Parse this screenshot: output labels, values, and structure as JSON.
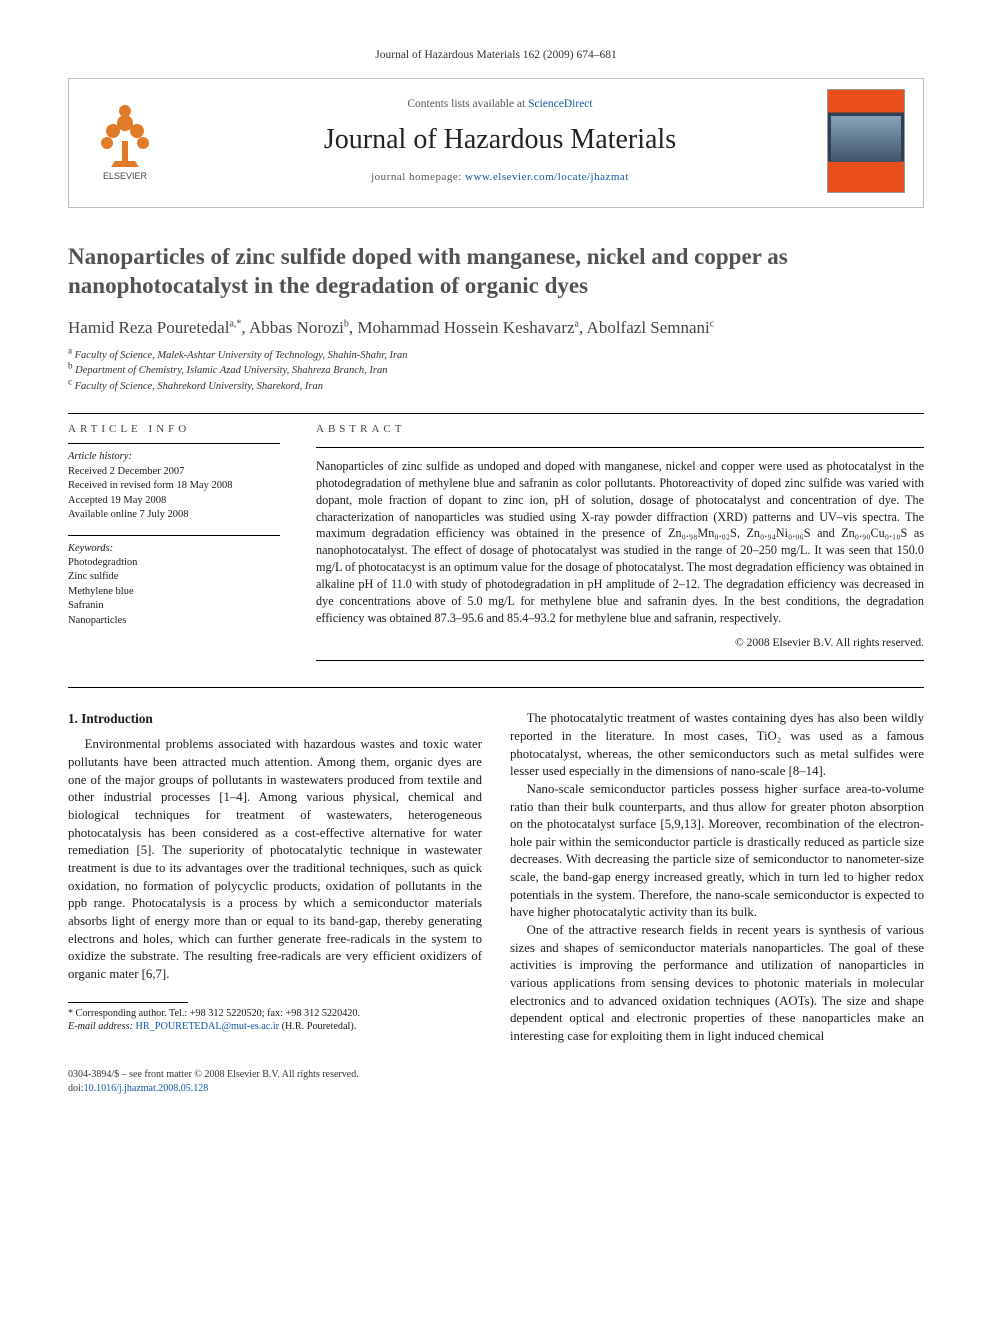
{
  "topline": "Journal of Hazardous Materials 162 (2009) 674–681",
  "pubbox": {
    "avail_prefix": "Contents lists available at ",
    "avail_link": "ScienceDirect",
    "journal": "Journal of Hazardous Materials",
    "homepage_prefix": "journal homepage: ",
    "homepage_link": "www.elsevier.com/locate/jhazmat",
    "elsevier_tree_color": "#e07b2a",
    "elsevier_text": "ELSEVIER"
  },
  "title": "Nanoparticles of zinc sulfide doped with manganese, nickel and copper as nanophotocatalyst in the degradation of organic dyes",
  "authors_html": "Hamid Reza Pouretedal<sup>a,*</sup>, Abbas Norozi<sup>b</sup>, Mohammad Hossein Keshavarz<sup>a</sup>, Abolfazl Semnani<sup>c</sup>",
  "affiliations": [
    {
      "mark": "a",
      "text": "Faculty of Science, Malek-Ashtar University of Technology, Shahin-Shahr, Iran"
    },
    {
      "mark": "b",
      "text": "Department of Chemistry, Islamic Azad University, Shahreza Branch, Iran"
    },
    {
      "mark": "c",
      "text": "Faculty of Science, Shahrekord University, Sharekord, Iran"
    }
  ],
  "article_info_hdr": "ARTICLE INFO",
  "abstract_hdr": "ABSTRACT",
  "history_label": "Article history:",
  "history": [
    "Received 2 December 2007",
    "Received in revised form 18 May 2008",
    "Accepted 19 May 2008",
    "Available online 7 July 2008"
  ],
  "keywords_label": "Keywords:",
  "keywords": [
    "Photodegradtion",
    "Zinc sulfide",
    "Methylene blue",
    "Safranin",
    "Nanoparticles"
  ],
  "abstract": "Nanoparticles of zinc sulfide as undoped and doped with manganese, nickel and copper were used as photocatalyst in the photodegradation of methylene blue and safranin as color pollutants. Photoreactivity of doped zinc sulfide was varied with dopant, mole fraction of dopant to zinc ion, pH of solution, dosage of photocatalyst and concentration of dye. The characterization of nanoparticles was studied using X-ray powder diffraction (XRD) patterns and UV–vis spectra. The maximum degradation efficiency was obtained in the presence of Zn₀.₉₈Mn₀.₀₂S, Zn₀.₉₄Ni₀.₀₆S and Zn₀.₉₀Cu₀.₁₀S as nanophotocatalyst. The effect of dosage of photocatalyst was studied in the range of 20–250 mg/L. It was seen that 150.0 mg/L of photocatacyst is an optimum value for the dosage of photocatalyst. The most degradation efficiency was obtained in alkaline pH of 11.0 with study of photodegradation in pH amplitude of 2–12. The degradation efficiency was decreased in dye concentrations above of 5.0 mg/L for methylene blue and safranin dyes. In the best conditions, the degradation efficiency was obtained 87.3–95.6 and 85.4–93.2 for methylene blue and safranin, respectively.",
  "copyright": "© 2008 Elsevier B.V. All rights reserved.",
  "section1_heading": "1.  Introduction",
  "body": {
    "p1": "Environmental problems associated with hazardous wastes and toxic water pollutants have been attracted much attention. Among them, organic dyes are one of the major groups of pollutants in wastewaters produced from textile and other industrial processes [1–4]. Among various physical, chemical and biological techniques for treatment of wastewaters, heterogeneous photocatalysis has been considered as a cost-effective alternative for water remediation [5]. The superiority of photocatalytic technique in wastewater treatment is due to its advantages over the traditional techniques, such as quick oxidation, no formation of polycyclic products, oxidation of pollutants in the ppb range. Photocatalysis is a process by which a semiconductor materials absorbs light of energy more than or equal to its band-gap, thereby generating electrons and holes, which can further generate free-radicals in the system to oxidize the substrate. The resulting free-radicals are very efficient oxidizers of organic mater [6,7].",
    "p2": "The photocatalytic treatment of wastes containing dyes has also been wildly reported in the literature. In most cases, TiO₂ was used as a famous photocatalyst, whereas, the other semiconductors such as metal sulfides were lesser used especially in the dimensions of nano-scale [8–14].",
    "p3": "Nano-scale semiconductor particles possess higher surface area-to-volume ratio than their bulk counterparts, and thus allow for greater photon absorption on the photocatalyst surface [5,9,13]. Moreover, recombination of the electron-hole pair within the semiconductor particle is drastically reduced as particle size decreases. With decreasing the particle size of semiconductor to nanometer-size scale, the band-gap energy increased greatly, which in turn led to higher redox potentials in the system. Therefore, the nano-scale semiconductor is expected to have higher photocatalytic activity than its bulk.",
    "p4": "One of the attractive research fields in recent years is synthesis of various sizes and shapes of semiconductor materials nanoparticles. The goal of these activities is improving the performance and utilization of nanoparticles in various applications from sensing devices to photonic materials in molecular electronics and to advanced oxidation techniques (AOTs). The size and shape dependent optical and electronic properties of these nanoparticles make an interesting case for exploiting them in light induced chemical"
  },
  "footnote": {
    "corr_label": "Corresponding author. Tel.: +98 312 5220520; fax: +98 312 5220420.",
    "email_label": "E-mail address:",
    "email": "HR_POURETEDAL@mut-es.ac.ir",
    "email_who": "(H.R. Pouretedal)."
  },
  "bottom": {
    "line1": "0304-3894/$ – see front matter © 2008 Elsevier B.V. All rights reserved.",
    "doi_prefix": "doi:",
    "doi": "10.1016/j.jhazmat.2008.05.128"
  },
  "colors": {
    "link": "#1156a6",
    "title_gray": "#525252",
    "rule": "#000000",
    "box_border": "#bfbfbf"
  }
}
